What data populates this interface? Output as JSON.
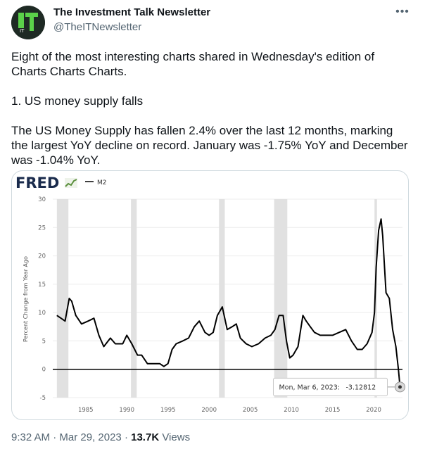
{
  "tweet": {
    "author_name": "The Investment Talk Newsletter",
    "author_handle": "@TheITNewsletter",
    "avatar_text": "IT",
    "more_icon": "more-horizontal-icon",
    "paragraphs": [
      "Eight of the most interesting charts shared in Wednesday's edition of Charts Charts Charts.",
      "1. US money supply falls",
      "The US Money Supply has fallen 2.4% over the last 12 months, marking the largest YoY decline on record. January was -1.75% YoY and December was -1.04% YoY."
    ],
    "time": "9:32 AM",
    "separator": "·",
    "date": "Mar 29, 2023",
    "views_count": "13.7K",
    "views_label": "Views"
  },
  "chart_data": {
    "type": "line",
    "brand": "FRED",
    "legend_label": "M2",
    "ylabel": "Percent Change from Year Ago",
    "xlabel": "",
    "ylim": [
      -5,
      30
    ],
    "xlim": [
      1981,
      2023.5
    ],
    "y_ticks": [
      "30",
      "25",
      "20",
      "15",
      "10",
      "5",
      "0",
      "-5"
    ],
    "x_ticks": [
      "1985",
      "1990",
      "1995",
      "2000",
      "2005",
      "2010",
      "2015",
      "2020"
    ],
    "recessions": [
      [
        1981.5,
        1982.9
      ],
      [
        1990.5,
        1991.2
      ],
      [
        2001.2,
        2001.9
      ],
      [
        2007.9,
        2009.5
      ],
      [
        2020.1,
        2020.4
      ]
    ],
    "series": [
      {
        "name": "M2",
        "x": [
          1981.5,
          1982.0,
          1982.5,
          1983.0,
          1983.3,
          1983.8,
          1984.5,
          1985.3,
          1986.0,
          1986.6,
          1987.2,
          1988.0,
          1988.6,
          1989.5,
          1990.0,
          1990.6,
          1991.3,
          1991.8,
          1992.5,
          1993.0,
          1993.5,
          1994.0,
          1994.5,
          1995.0,
          1995.5,
          1996.0,
          1996.8,
          1997.5,
          1998.2,
          1998.8,
          1999.5,
          2000.0,
          2000.5,
          2001.0,
          2001.6,
          2002.2,
          2002.8,
          2003.3,
          2003.8,
          2004.5,
          2005.2,
          2006.0,
          2006.8,
          2007.5,
          2008.0,
          2008.5,
          2009.0,
          2009.4,
          2009.8,
          2010.2,
          2010.8,
          2011.4,
          2011.8,
          2012.3,
          2012.8,
          2013.5,
          2014.2,
          2015.0,
          2015.8,
          2016.6,
          2017.3,
          2018.0,
          2018.6,
          2019.2,
          2019.8,
          2020.1,
          2020.3,
          2020.6,
          2020.9,
          2021.1,
          2021.5,
          2021.9,
          2022.3,
          2022.7,
          2023.0,
          2023.2
        ],
        "y": [
          9.5,
          9.0,
          8.5,
          12.5,
          12.0,
          9.5,
          8.0,
          8.5,
          9.0,
          6.0,
          4.0,
          5.5,
          4.5,
          4.5,
          6.0,
          4.5,
          2.5,
          2.5,
          1.0,
          1.0,
          1.0,
          1.0,
          0.5,
          1.0,
          3.5,
          4.5,
          5.0,
          5.5,
          7.5,
          8.5,
          6.5,
          6.0,
          6.5,
          9.5,
          11.0,
          7.0,
          7.5,
          8.0,
          5.5,
          4.5,
          4.0,
          4.5,
          5.5,
          6.0,
          7.0,
          9.5,
          9.5,
          5.0,
          2.0,
          2.5,
          4.0,
          9.5,
          8.5,
          7.5,
          6.5,
          6.0,
          6.0,
          6.0,
          6.5,
          7.0,
          5.0,
          3.5,
          3.5,
          4.5,
          6.5,
          10.0,
          18.0,
          24.5,
          26.5,
          23.5,
          13.5,
          12.5,
          7.0,
          4.0,
          0.0,
          -3.1
        ]
      }
    ],
    "tooltip": {
      "label": "Mon, Mar 6, 2023:",
      "value": "-3.12812",
      "x": 2023.2,
      "y": -3.12812
    },
    "grid": true,
    "legend_position": "top-left"
  }
}
